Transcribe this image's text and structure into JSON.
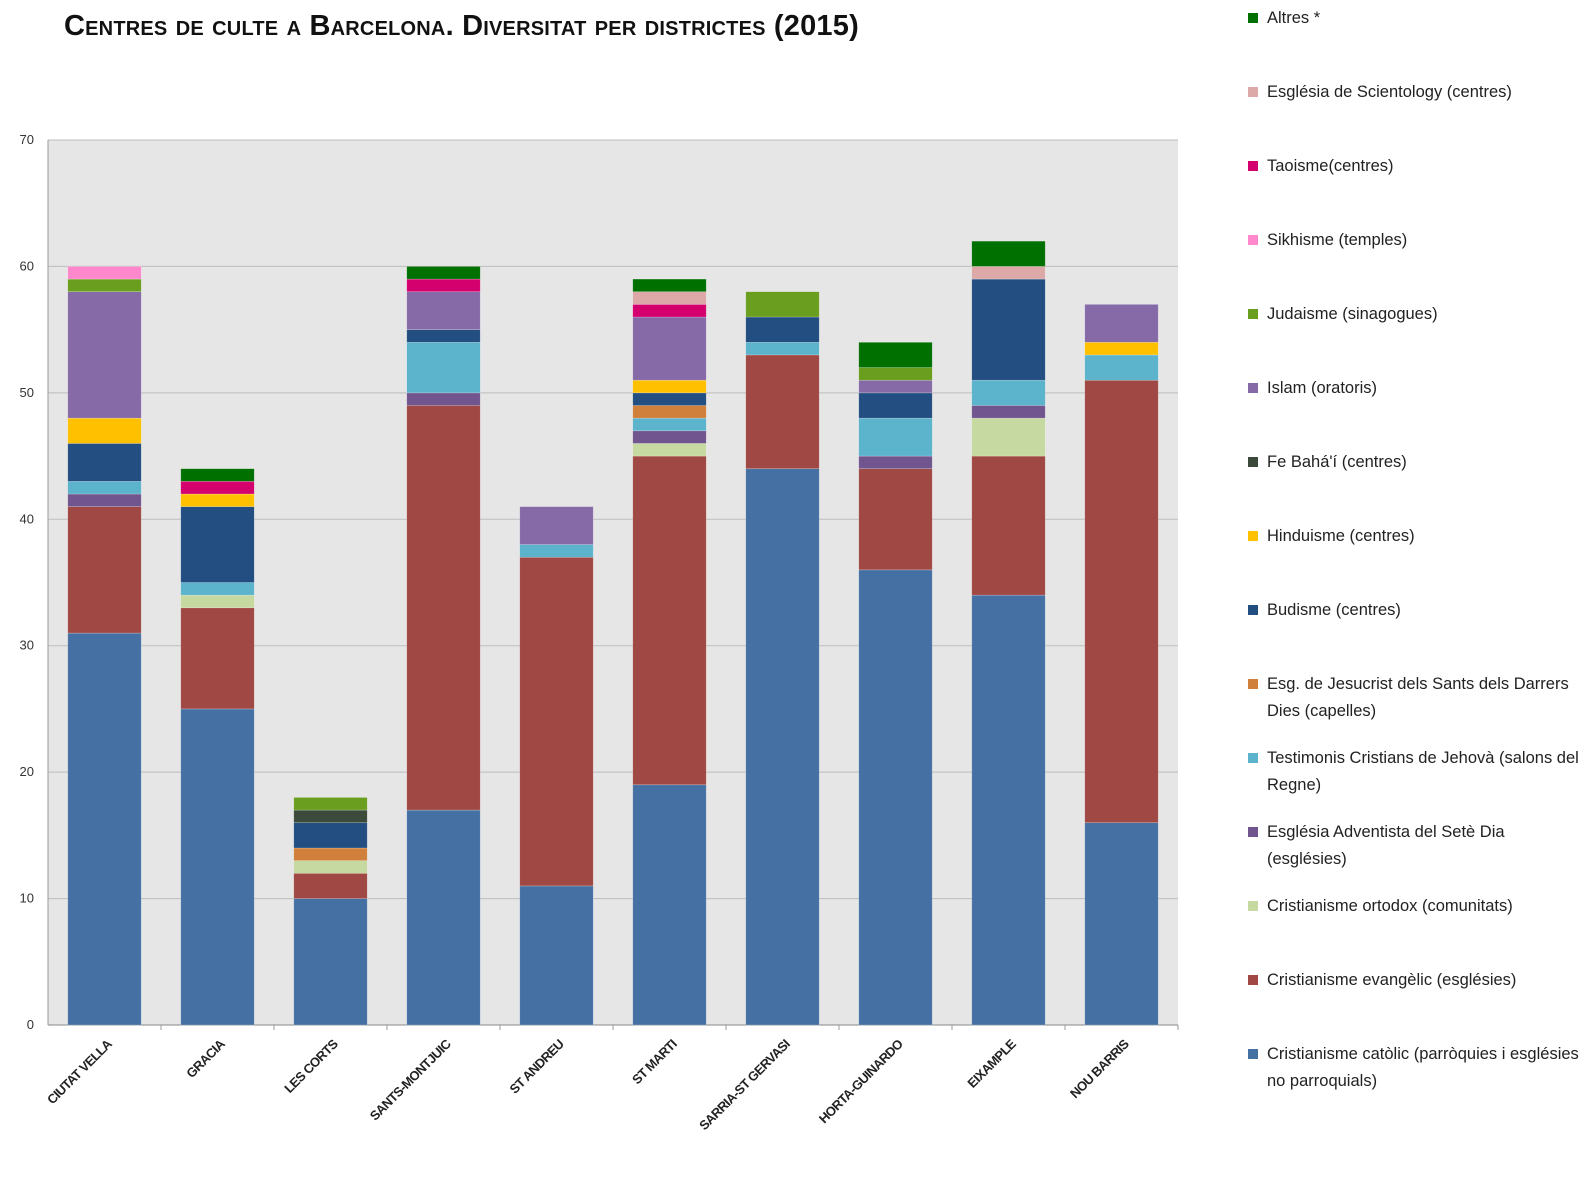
{
  "title": "Centres de culte a Barcelona. Diversitat per districtes (2015)",
  "chart_data": {
    "type": "bar",
    "stacked": true,
    "title": "Centres de culte a Barcelona. Diversitat per districtes (2015)",
    "xlabel": "",
    "ylabel": "",
    "ylim": [
      0,
      70
    ],
    "yticks": [
      "0",
      "10",
      "20",
      "30",
      "40",
      "50",
      "60",
      "70"
    ],
    "grid": true,
    "legend_position": "right",
    "categories": [
      "CIUTAT VELLA",
      "GRACIA",
      "LES CORTS",
      "SANTS-MONTJUIC",
      "ST ANDREU",
      "ST MARTI",
      "SARRIA-ST GERVASI",
      "HORTA-GUINARDO",
      "EIXAMPLE",
      "NOU BARRIS"
    ],
    "series": [
      {
        "name": "Cristianisme catòlic (parròquies i esglésies no parroquials)",
        "color": "#4570A3",
        "values": [
          31,
          25,
          10,
          17,
          11,
          19,
          44,
          36,
          34,
          16
        ]
      },
      {
        "name": "Cristianisme evangèlic (esglésies)",
        "color": "#A04844",
        "values": [
          10,
          8,
          2,
          32,
          26,
          26,
          9,
          8,
          11,
          35
        ]
      },
      {
        "name": "Cristianisme ortodox (comunitats)",
        "color": "#C6D9A0",
        "values": [
          0,
          1,
          1,
          0,
          0,
          1,
          0,
          0,
          3,
          0
        ]
      },
      {
        "name": "Església Adventista del Setè Dia (esglésies)",
        "color": "#71558E",
        "values": [
          1,
          0,
          0,
          1,
          0,
          1,
          0,
          1,
          1,
          0
        ]
      },
      {
        "name": "Testimonis Cristians de Jehovà (salons del Regne)",
        "color": "#5BB3CC",
        "values": [
          1,
          1,
          0,
          4,
          1,
          1,
          1,
          3,
          2,
          2
        ]
      },
      {
        "name": "Esg. de Jesucrist dels Sants dels Darrers Dies (capelles)",
        "color": "#D0803A",
        "values": [
          0,
          0,
          1,
          0,
          0,
          1,
          0,
          0,
          0,
          0
        ]
      },
      {
        "name": "Budisme (centres)",
        "color": "#234E81",
        "values": [
          3,
          6,
          2,
          1,
          0,
          1,
          2,
          2,
          8,
          0
        ]
      },
      {
        "name": "Hinduisme (centres)",
        "color": "#FFC000",
        "values": [
          2,
          1,
          0,
          0,
          0,
          1,
          0,
          0,
          0,
          1
        ]
      },
      {
        "name": "Fe Bahá'í (centres)",
        "color": "#3B4A3A",
        "values": [
          0,
          0,
          1,
          0,
          0,
          0,
          0,
          0,
          0,
          0
        ]
      },
      {
        "name": "Islam (oratoris)",
        "color": "#866AA8",
        "values": [
          10,
          0,
          0,
          3,
          3,
          5,
          0,
          1,
          0,
          3
        ]
      },
      {
        "name": "Judaisme (sinagogues)",
        "color": "#6A9E1E",
        "values": [
          1,
          0,
          1,
          0,
          0,
          0,
          2,
          1,
          0,
          0
        ]
      },
      {
        "name": "Sikhisme (temples)",
        "color": "#FF88CC",
        "values": [
          1,
          0,
          0,
          0,
          0,
          0,
          0,
          0,
          0,
          0
        ]
      },
      {
        "name": "Taoisme(centres)",
        "color": "#D4006E",
        "values": [
          0,
          1,
          0,
          1,
          0,
          1,
          0,
          0,
          0,
          0
        ]
      },
      {
        "name": "Església de Scientology (centres)",
        "color": "#DCA8A8",
        "values": [
          0,
          0,
          0,
          0,
          0,
          1,
          0,
          0,
          1,
          0
        ]
      },
      {
        "name": "Altres *",
        "color": "#007000",
        "values": [
          0,
          1,
          0,
          1,
          0,
          1,
          0,
          2,
          2,
          0
        ]
      }
    ],
    "legend_order": [
      "Altres *",
      "Església de Scientology (centres)",
      "Taoisme(centres)",
      "Sikhisme (temples)",
      "Judaisme (sinagogues)",
      "Islam (oratoris)",
      "Fe Bahá'í (centres)",
      "Hinduisme (centres)",
      "Budisme (centres)",
      "Esg. de Jesucrist dels Sants dels Darrers Dies (capelles)",
      "Testimonis Cristians de Jehovà (salons del Regne)",
      "Església Adventista del Setè Dia (esglésies)",
      "Cristianisme ortodox (comunitats)",
      "Cristianisme evangèlic (esglésies)",
      "Cristianisme catòlic (parròquies i esglésies no parroquials)"
    ]
  }
}
